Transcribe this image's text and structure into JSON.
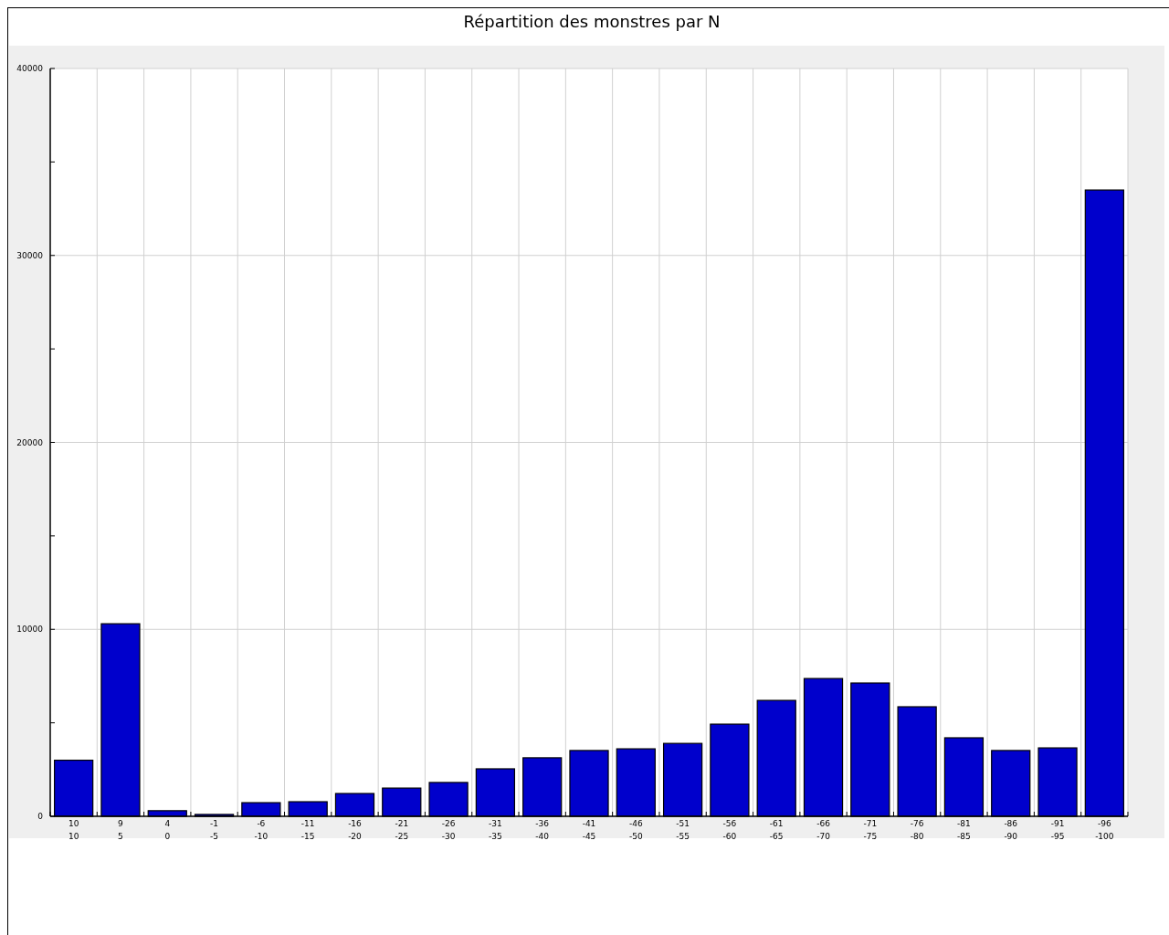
{
  "chart_data": {
    "type": "bar",
    "title": "Répartition des monstres par N",
    "categories": [
      "10\n10",
      "9\n5",
      "4\n0",
      "-1\n-5",
      "-6\n-10",
      "-11\n-15",
      "-16\n-20",
      "-21\n-25",
      "-26\n-30",
      "-31\n-35",
      "-36\n-40",
      "-41\n-45",
      "-46\n-50",
      "-51\n-55",
      "-56\n-60",
      "-61\n-65",
      "-66\n-70",
      "-71\n-75",
      "-76\n-80",
      "-81\n-85",
      "-86\n-90",
      "-91\n-95",
      "-96\n-100"
    ],
    "values": [
      3000,
      10300,
      300,
      100,
      730,
      780,
      1220,
      1510,
      1810,
      2540,
      3130,
      3520,
      3610,
      3900,
      4930,
      6200,
      7370,
      7130,
      5860,
      4200,
      3520,
      3660,
      33500
    ],
    "color": "#0000cc",
    "ylim": [
      0,
      40000
    ],
    "yticks": [
      0,
      {
        "value": 5000,
        "label": null
      },
      10000,
      {
        "value": 15000,
        "label": null
      },
      20000,
      {
        "value": 25000,
        "label": null
      },
      30000,
      {
        "value": 35000,
        "label": null
      },
      40000
    ],
    "grid": true
  }
}
